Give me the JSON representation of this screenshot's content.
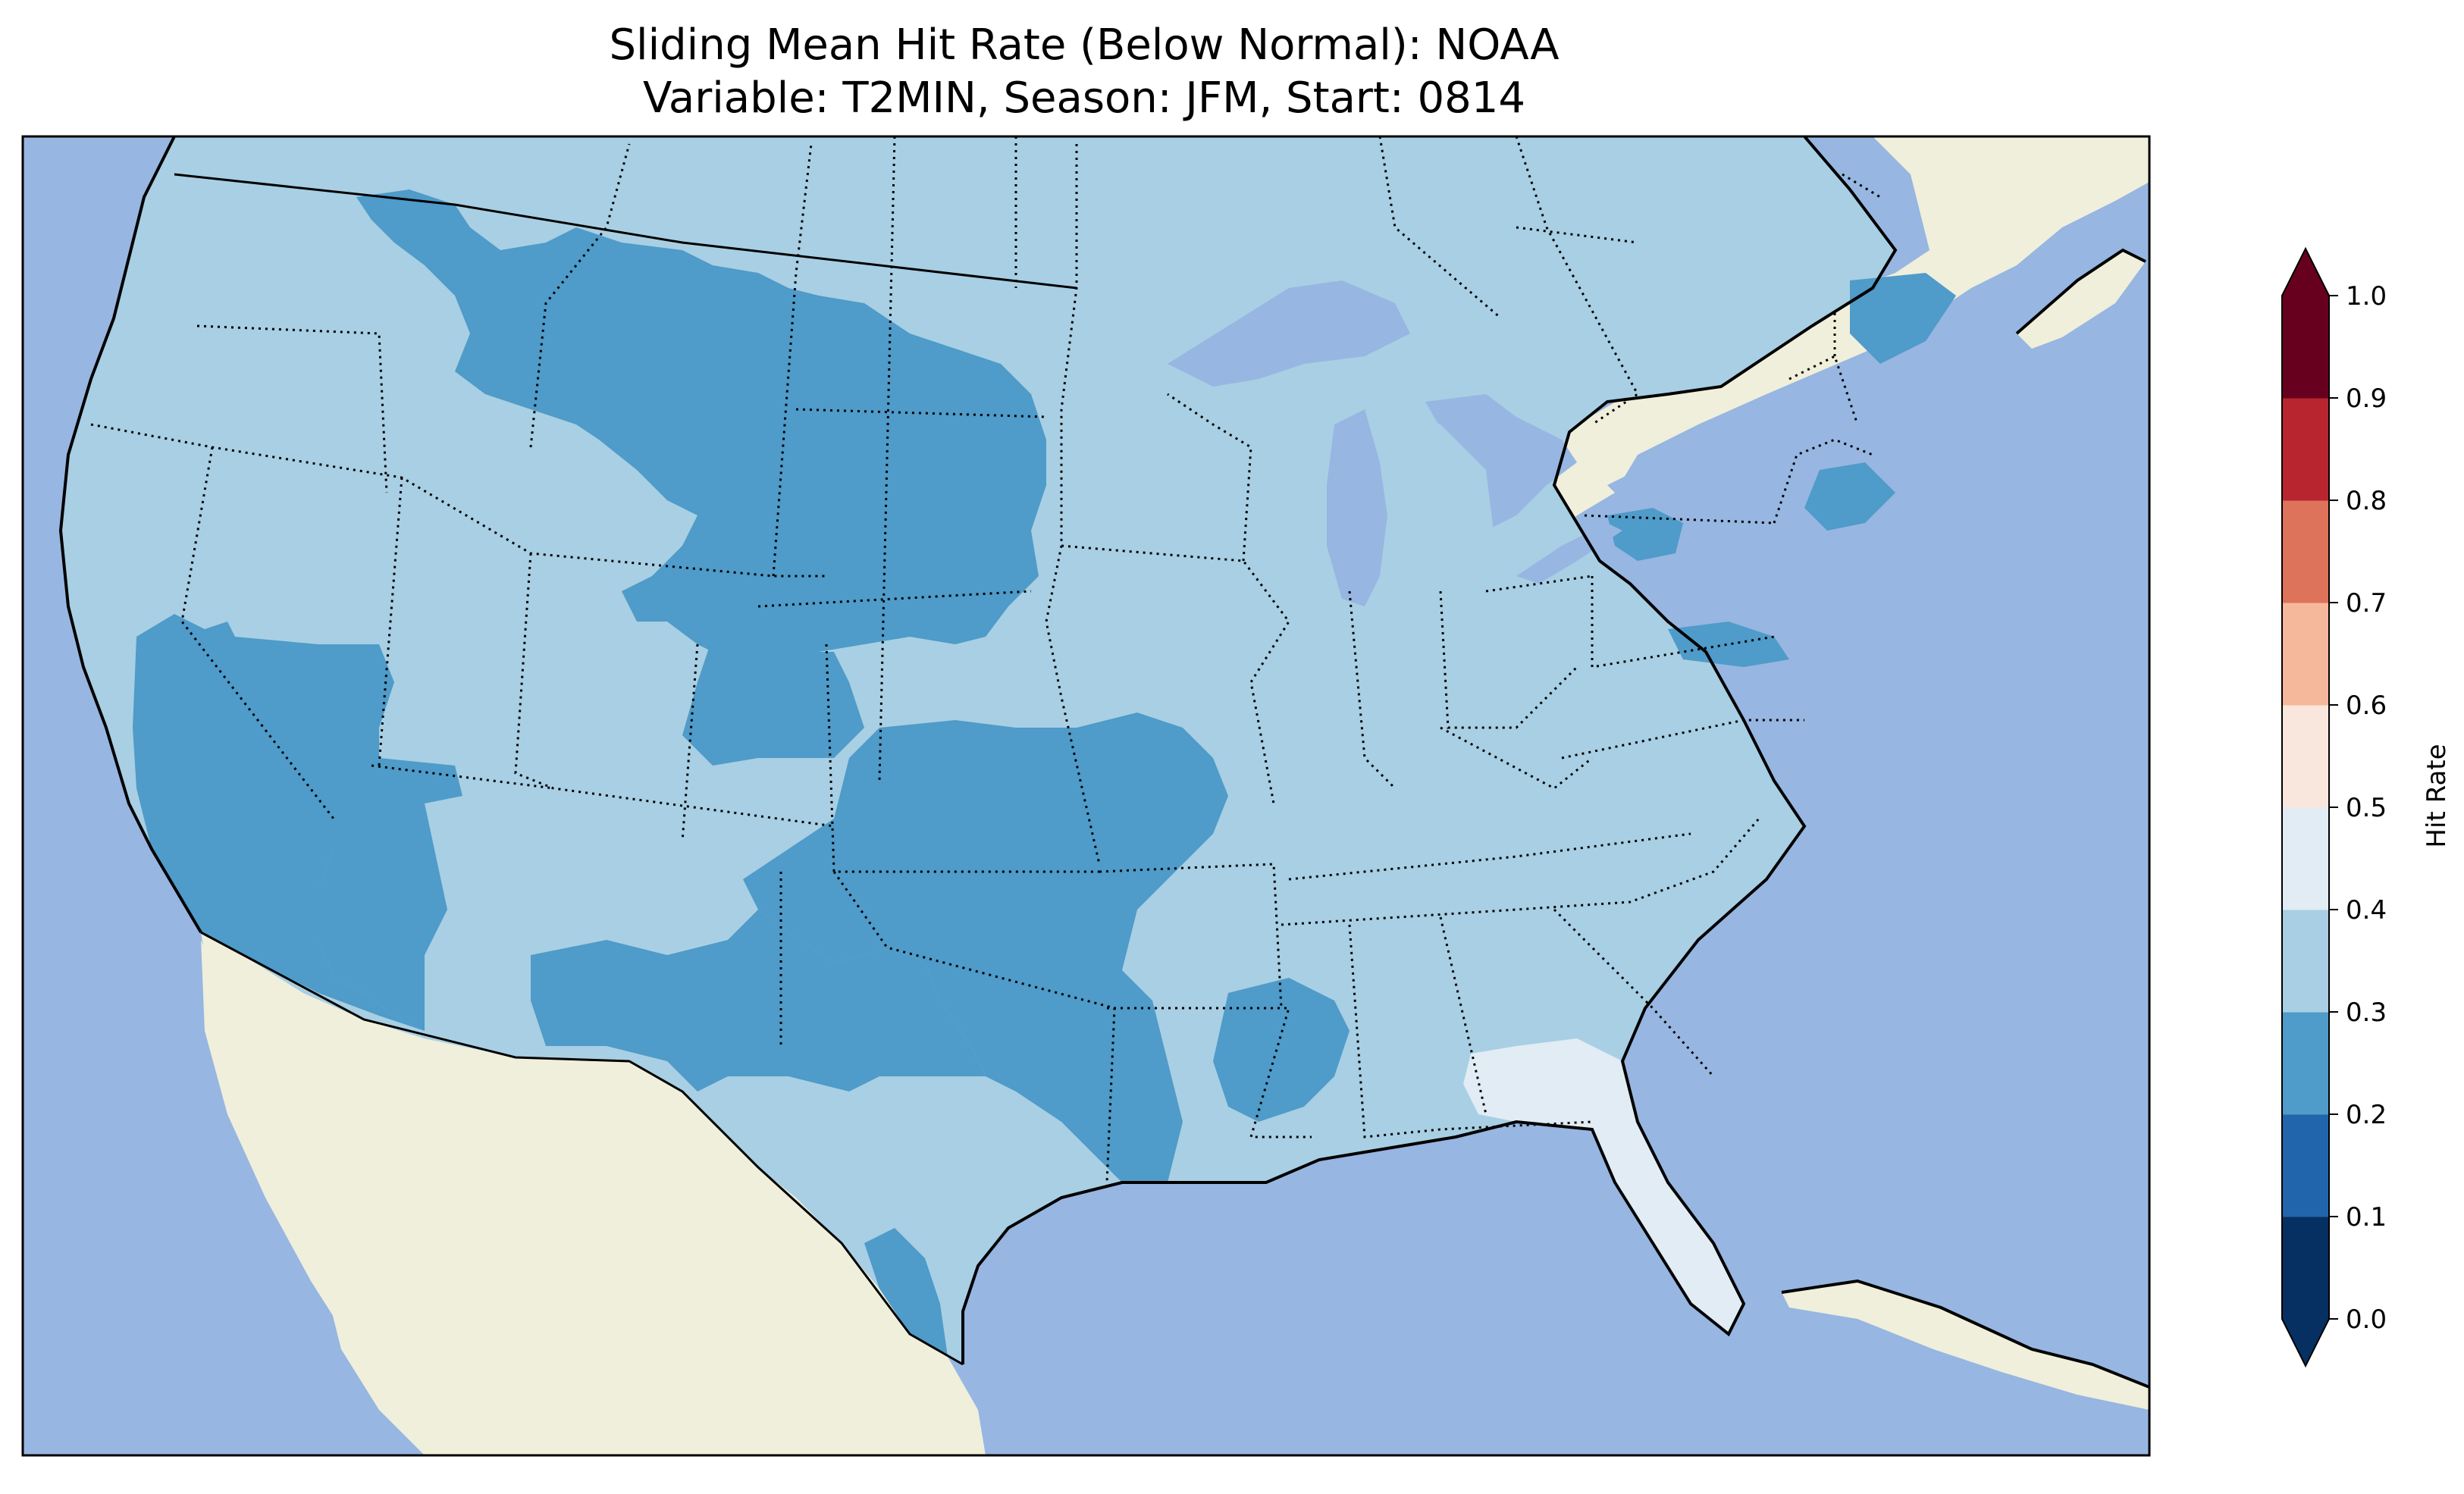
{
  "title_line1": "Sliding Mean Hit Rate (Below Normal): NOAA",
  "title_line2": "Variable: T2MIN, Season: JFM, Start: 0814",
  "colors": {
    "ocean": "#97b6e1",
    "land": "#efefdb",
    "coastline": "#000000",
    "border": "#000000"
  },
  "colorbar": {
    "label": "Hit Rate",
    "extend": "both",
    "ticks": [
      "0.0",
      "0.1",
      "0.2",
      "0.3",
      "0.4",
      "0.5",
      "0.6",
      "0.7",
      "0.8",
      "0.9",
      "1.0"
    ],
    "bins": [
      {
        "from": 0.0,
        "to": 0.1,
        "color": "#053061"
      },
      {
        "from": 0.1,
        "to": 0.2,
        "color": "#2166ac"
      },
      {
        "from": 0.2,
        "to": 0.3,
        "color": "#4f9bc9"
      },
      {
        "from": 0.3,
        "to": 0.4,
        "color": "#a8cfe3"
      },
      {
        "from": 0.4,
        "to": 0.5,
        "color": "#e1ecf4"
      },
      {
        "from": 0.5,
        "to": 0.6,
        "color": "#f9e6dc"
      },
      {
        "from": 0.6,
        "to": 0.7,
        "color": "#f5b89b"
      },
      {
        "from": 0.7,
        "to": 0.8,
        "color": "#dd735a"
      },
      {
        "from": 0.8,
        "to": 0.9,
        "color": "#b8252f"
      },
      {
        "from": 0.9,
        "to": 1.0,
        "color": "#67001f"
      }
    ],
    "under_color": "#053061",
    "over_color": "#67001f"
  },
  "regions": {
    "background_value": 0.35,
    "below_0_3": [
      "Northern Rockies",
      "Great Basin",
      "California",
      "Arizona",
      "Dakotas",
      "Nebraska",
      "Colorado",
      "Kansas",
      "Oklahoma",
      "Texas",
      "Arkansas",
      "Louisiana",
      "Missouri",
      "Pennsylvania",
      "Massachusetts"
    ],
    "above_0_4": [
      "Florida",
      "Southern Georgia"
    ]
  }
}
